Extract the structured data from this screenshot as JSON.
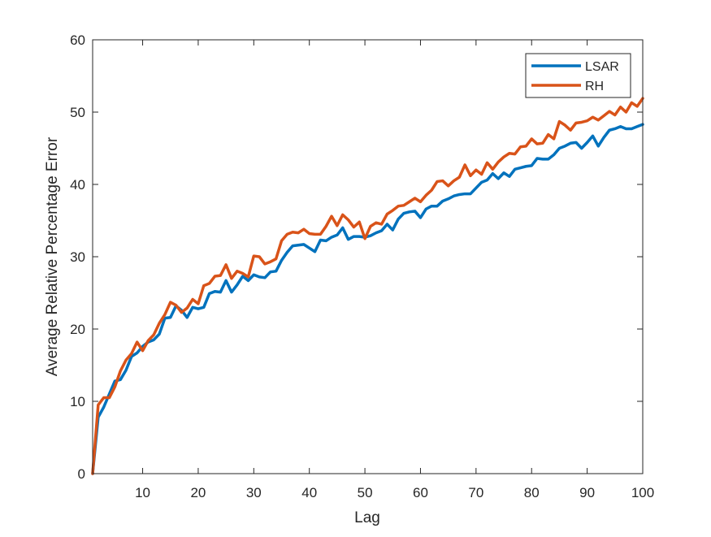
{
  "chart_data": {
    "type": "line",
    "title": "",
    "xlabel": "Lag",
    "ylabel": "Average Relative Percentage Error",
    "xlim": [
      1,
      100
    ],
    "ylim": [
      0,
      60
    ],
    "xticks": [
      10,
      20,
      30,
      40,
      50,
      60,
      70,
      80,
      90,
      100
    ],
    "yticks": [
      0,
      10,
      20,
      30,
      40,
      50,
      60
    ],
    "grid": false,
    "legend_position": "top-right",
    "x": [
      1,
      2,
      3,
      4,
      5,
      6,
      7,
      8,
      9,
      10,
      11,
      12,
      13,
      14,
      15,
      16,
      17,
      18,
      19,
      20,
      21,
      22,
      23,
      24,
      25,
      26,
      27,
      28,
      29,
      30,
      31,
      32,
      33,
      34,
      35,
      36,
      37,
      38,
      39,
      40,
      41,
      42,
      43,
      44,
      45,
      46,
      47,
      48,
      49,
      50,
      51,
      52,
      53,
      54,
      55,
      56,
      57,
      58,
      59,
      60,
      61,
      62,
      63,
      64,
      65,
      66,
      67,
      68,
      69,
      70,
      71,
      72,
      73,
      74,
      75,
      76,
      77,
      78,
      79,
      80,
      81,
      82,
      83,
      84,
      85,
      86,
      87,
      88,
      89,
      90,
      91,
      92,
      93,
      94,
      95,
      96,
      97,
      98,
      99,
      100
    ],
    "series": [
      {
        "name": "LSAR",
        "color": "#0072BD",
        "values": [
          0,
          7.8,
          9.2,
          11.0,
          12.8,
          13.0,
          14.3,
          16.2,
          16.7,
          17.6,
          18.2,
          18.5,
          19.3,
          21.5,
          21.6,
          23.2,
          22.6,
          21.6,
          23.0,
          22.8,
          23.0,
          24.9,
          25.2,
          25.1,
          26.7,
          25.1,
          26.1,
          27.3,
          26.7,
          27.5,
          27.2,
          27.1,
          27.9,
          28.0,
          29.5,
          30.6,
          31.5,
          31.6,
          31.7,
          31.2,
          30.7,
          32.3,
          32.2,
          32.7,
          33.0,
          34.0,
          32.4,
          32.8,
          32.8,
          32.7,
          32.9,
          33.3,
          33.6,
          34.5,
          33.7,
          35.2,
          36.0,
          36.2,
          36.3,
          35.4,
          36.6,
          37.0,
          37.0,
          37.7,
          38.0,
          38.4,
          38.6,
          38.7,
          38.7,
          39.5,
          40.3,
          40.6,
          41.5,
          40.8,
          41.6,
          41.1,
          42.1,
          42.3,
          42.5,
          42.6,
          43.6,
          43.5,
          43.5,
          44.1,
          45.0,
          45.3,
          45.7,
          45.8,
          45.0,
          45.8,
          46.7,
          45.3,
          46.5,
          47.5,
          47.7,
          48.0,
          47.7,
          47.7,
          48.0,
          48.3
        ]
      },
      {
        "name": "RH",
        "color": "#D95319",
        "values": [
          0,
          9.5,
          10.5,
          10.5,
          12.0,
          14.2,
          15.7,
          16.6,
          18.2,
          17.0,
          18.4,
          19.2,
          20.8,
          22.0,
          23.7,
          23.3,
          22.3,
          22.9,
          24.1,
          23.5,
          26.0,
          26.3,
          27.3,
          27.4,
          28.9,
          27.0,
          28.0,
          27.7,
          27.2,
          30.1,
          30.0,
          29.0,
          29.3,
          29.7,
          32.2,
          33.1,
          33.4,
          33.3,
          33.8,
          33.2,
          33.1,
          33.1,
          34.2,
          35.6,
          34.3,
          35.8,
          35.1,
          34.1,
          34.8,
          32.5,
          34.2,
          34.7,
          34.5,
          35.9,
          36.4,
          37.0,
          37.1,
          37.6,
          38.1,
          37.6,
          38.5,
          39.2,
          40.4,
          40.5,
          39.8,
          40.5,
          41.0,
          42.7,
          41.2,
          42.0,
          41.4,
          43.0,
          42.1,
          43.1,
          43.8,
          44.3,
          44.2,
          45.2,
          45.3,
          46.3,
          45.6,
          45.7,
          46.9,
          46.3,
          48.7,
          48.2,
          47.5,
          48.5,
          48.6,
          48.8,
          49.3,
          48.9,
          49.5,
          50.1,
          49.6,
          50.7,
          50.0,
          51.3,
          50.8,
          51.9
        ]
      }
    ]
  }
}
